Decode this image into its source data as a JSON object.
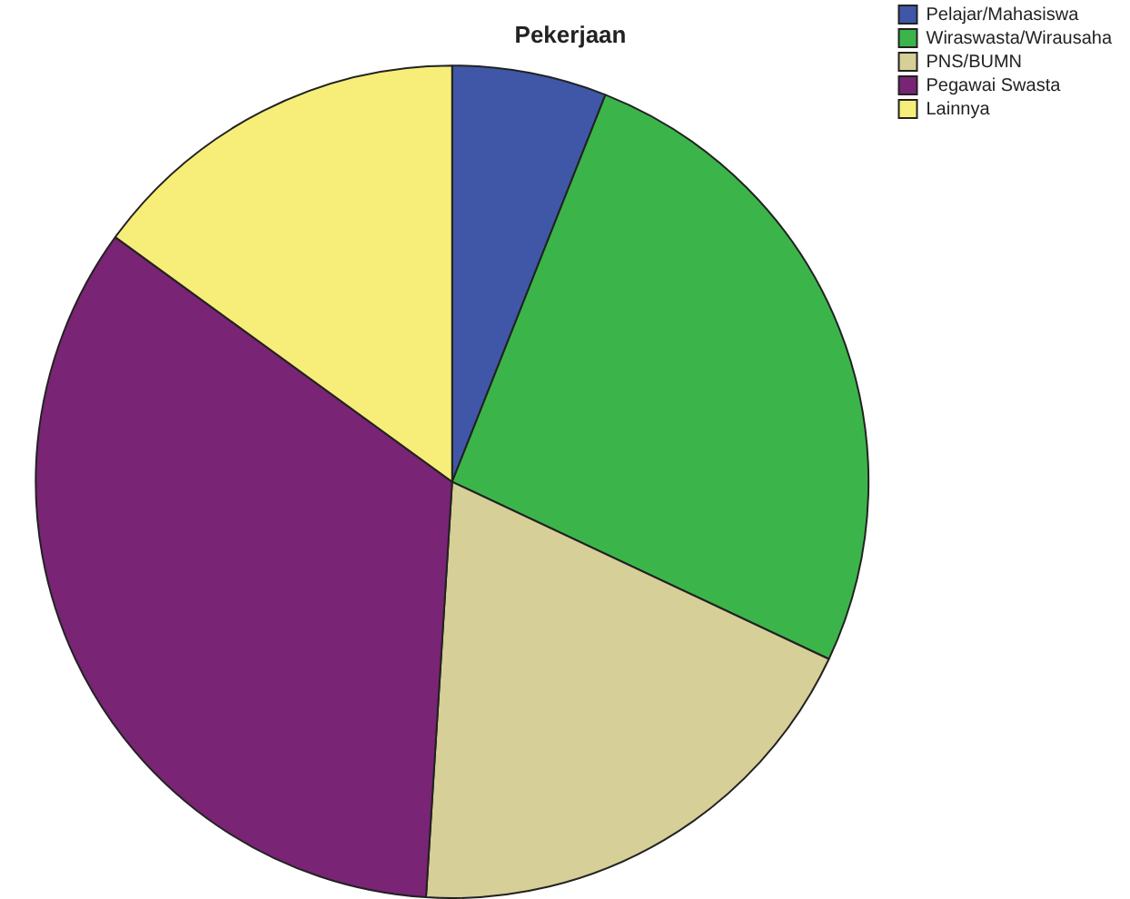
{
  "chart_data": {
    "type": "pie",
    "title": "Pekerjaan",
    "categories": [
      "Pelajar/Mahasiswa",
      "Wiraswasta/Wirausaha",
      "PNS/BUMN",
      "Pegawai Swasta",
      "Lainnya"
    ],
    "values": [
      6,
      26,
      19,
      34,
      15
    ],
    "colors": [
      "#3f57a6",
      "#3bb54a",
      "#d6cf97",
      "#7a2475",
      "#f7ee79"
    ],
    "legend": "top right"
  }
}
